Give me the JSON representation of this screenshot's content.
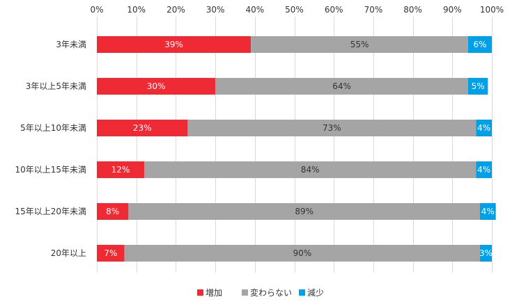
{
  "chart_data": {
    "type": "bar",
    "orientation": "horizontal",
    "stacked": "percent",
    "categories": [
      "3年未満",
      "3年以上5年未満",
      "5年以上10年未満",
      "10年以上15年未満",
      "15年以上20年未満",
      "20年以上"
    ],
    "series": [
      {
        "name": "増加",
        "color": "#ee2a35",
        "label_color": "#ffffff",
        "values": [
          39,
          30,
          23,
          12,
          8,
          7
        ],
        "labels": [
          "39%",
          "30%",
          "23%",
          "12%",
          "8%",
          "7%"
        ]
      },
      {
        "name": "変わらない",
        "color": "#a5a5a5",
        "label_color": "#333333",
        "values": [
          55,
          64,
          73,
          84,
          89,
          90
        ],
        "labels": [
          "55%",
          "64%",
          "73%",
          "84%",
          "89%",
          "90%"
        ]
      },
      {
        "name": "減少",
        "color": "#00a0e9",
        "label_color": "#ffffff",
        "values": [
          6,
          5,
          4,
          4,
          4,
          3
        ],
        "labels": [
          "6%",
          "5%",
          "4%",
          "4%",
          "4%",
          "3%"
        ]
      }
    ],
    "xlim": [
      0,
      100
    ],
    "x_ticks": [
      "0%",
      "10%",
      "20%",
      "30%",
      "40%",
      "50%",
      "60%",
      "70%",
      "80%",
      "90%",
      "100%"
    ],
    "x_axis_position": "top",
    "grid": true,
    "legend_position": "bottom",
    "grid_color": "#d9d9d9"
  }
}
